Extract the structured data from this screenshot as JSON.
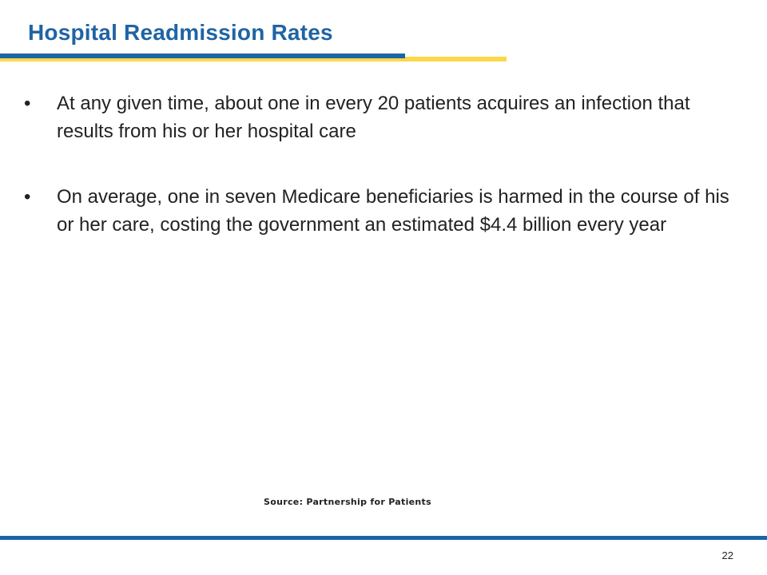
{
  "slide": {
    "title": "Hospital Readmission Rates",
    "bullet_marker": "•",
    "bullets": [
      "At any given time, about one in every 20 patients acquires an infection that results from his or her hospital care",
      "On average, one in seven Medicare beneficiaries is harmed in the course of his or her care, costing the government an estimated $4.4 billion every year"
    ],
    "source": "Source:  Partnership for Patients",
    "page_number": "22"
  },
  "colors": {
    "title_blue": "#1f64a4",
    "rule_blue": "#1a64a8",
    "rule_yellow": "#fbd84a",
    "text": "#222222"
  }
}
